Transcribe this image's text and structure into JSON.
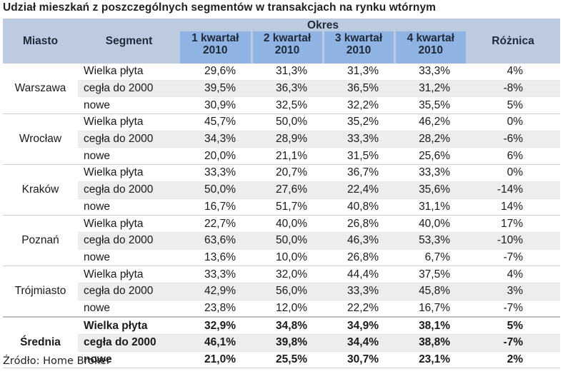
{
  "title": "Udział mieszkań z poszczególnych segmentów w transakcjach na rynku wtórnym",
  "header": {
    "city": "Miasto",
    "segment": "Segment",
    "period": "Okres",
    "q1_line1": "1 kwartał",
    "q1_line2": "2010",
    "q2_line1": "2 kwartał",
    "q2_line2": "2010",
    "q3_line1": "3 kwartał",
    "q3_line2": "2010",
    "q4_line1": "4 kwartał",
    "q4_line2": "2010",
    "diff": "Różnica"
  },
  "groups": [
    {
      "city": "Warszawa",
      "rows": [
        {
          "segment": "Wielka płyta",
          "q1": "29,6%",
          "q2": "31,3%",
          "q3": "31,3%",
          "q4": "33,3%",
          "diff": "4%"
        },
        {
          "segment": "cegła do 2000",
          "q1": "39,5%",
          "q2": "36,3%",
          "q3": "36,5%",
          "q4": "31,2%",
          "diff": "-8%"
        },
        {
          "segment": "nowe",
          "q1": "30,9%",
          "q2": "32,5%",
          "q3": "32,2%",
          "q4": "35,5%",
          "diff": "5%"
        }
      ]
    },
    {
      "city": "Wrocław",
      "rows": [
        {
          "segment": "Wielka płyta",
          "q1": "45,7%",
          "q2": "50,0%",
          "q3": "35,2%",
          "q4": "46,2%",
          "diff": "0%"
        },
        {
          "segment": "cegła do 2000",
          "q1": "34,3%",
          "q2": "28,9%",
          "q3": "33,3%",
          "q4": "28,2%",
          "diff": "-6%"
        },
        {
          "segment": "nowe",
          "q1": "20,0%",
          "q2": "21,1%",
          "q3": "31,5%",
          "q4": "25,6%",
          "diff": "6%"
        }
      ]
    },
    {
      "city": "Kraków",
      "rows": [
        {
          "segment": "Wielka płyta",
          "q1": "33,3%",
          "q2": "20,7%",
          "q3": "36,7%",
          "q4": "33,3%",
          "diff": "0%"
        },
        {
          "segment": "cegła do 2000",
          "q1": "50,0%",
          "q2": "27,6%",
          "q3": "22,4%",
          "q4": "35,6%",
          "diff": "-14%"
        },
        {
          "segment": "nowe",
          "q1": "16,7%",
          "q2": "51,7%",
          "q3": "40,8%",
          "q4": "31,1%",
          "diff": "14%"
        }
      ]
    },
    {
      "city": "Poznań",
      "rows": [
        {
          "segment": "Wielka płyta",
          "q1": "22,7%",
          "q2": "40,0%",
          "q3": "26,8%",
          "q4": "40,0%",
          "diff": "17%"
        },
        {
          "segment": "cegła do 2000",
          "q1": "63,6%",
          "q2": "50,0%",
          "q3": "46,3%",
          "q4": "53,3%",
          "diff": "-10%"
        },
        {
          "segment": "nowe",
          "q1": "13,6%",
          "q2": "10,0%",
          "q3": "26,8%",
          "q4": "6,7%",
          "diff": "-7%"
        }
      ]
    },
    {
      "city": "Trójmiasto",
      "rows": [
        {
          "segment": "Wielka płyta",
          "q1": "33,3%",
          "q2": "32,0%",
          "q3": "44,4%",
          "q4": "37,5%",
          "diff": "4%"
        },
        {
          "segment": "cegła do 2000",
          "q1": "42,9%",
          "q2": "56,0%",
          "q3": "33,3%",
          "q4": "45,8%",
          "diff": "3%"
        },
        {
          "segment": "nowe",
          "q1": "23,8%",
          "q2": "12,0%",
          "q3": "22,2%",
          "q4": "16,7%",
          "diff": "-7%"
        }
      ]
    },
    {
      "city": "Średnia",
      "rows": [
        {
          "segment": "Wielka płyta",
          "q1": "32,9%",
          "q2": "34,8%",
          "q3": "34,9%",
          "q4": "38,1%",
          "diff": "5%"
        },
        {
          "segment": "cegła do 2000",
          "q1": "46,1%",
          "q2": "39,8%",
          "q3": "34,4%",
          "q4": "38,8%",
          "diff": "-7%"
        },
        {
          "segment": "nowe",
          "q1": "21,0%",
          "q2": "25,5%",
          "q3": "30,7%",
          "q4": "23,1%",
          "diff": "2%"
        }
      ]
    }
  ],
  "source": "Źródło: Home Broker",
  "colors": {
    "header_bg": "#bccbe0",
    "quarter_bg": "#8fb3e3",
    "stripe_bg": "#eeecec"
  }
}
